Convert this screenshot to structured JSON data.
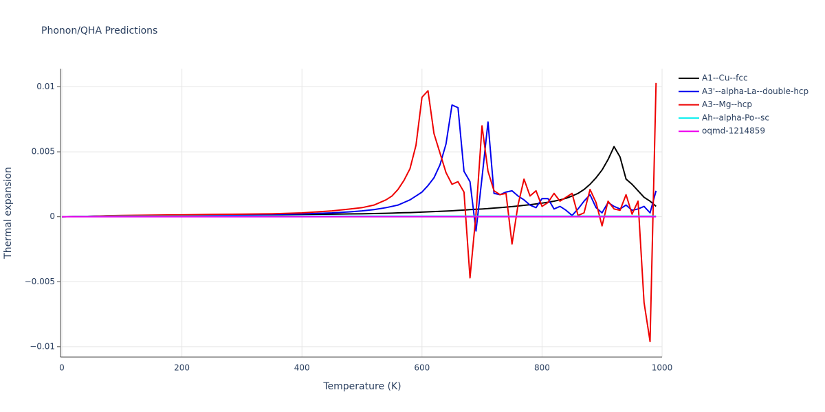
{
  "chart_data": {
    "type": "line",
    "title": "Phonon/QHA Predictions",
    "x_label": "Temperature (K)",
    "y_label": "Thermal expansion",
    "x": [
      0,
      25,
      50,
      75,
      100,
      150,
      200,
      250,
      300,
      350,
      400,
      450,
      480,
      500,
      520,
      540,
      550,
      560,
      570,
      580,
      590,
      600,
      610,
      620,
      630,
      640,
      650,
      660,
      670,
      680,
      690,
      700,
      710,
      720,
      730,
      740,
      750,
      760,
      770,
      780,
      790,
      800,
      810,
      820,
      830,
      840,
      850,
      860,
      870,
      880,
      890,
      900,
      910,
      920,
      930,
      940,
      950,
      960,
      970,
      980,
      990
    ],
    "xlim": [
      0,
      1000
    ],
    "xticks": [
      0,
      200,
      400,
      600,
      800,
      1000
    ],
    "ylim": [
      -0.0108,
      0.0114
    ],
    "yticks": [
      {
        "value": -0.01,
        "label": "−0.01"
      },
      {
        "value": -0.005,
        "label": "−0.005"
      },
      0,
      0.005,
      0.01
    ],
    "grid": true,
    "legend_position": "right",
    "series": [
      {
        "name": "A1--Cu--fcc",
        "color": "#000000",
        "values": [
          0,
          2e-05,
          4e-05,
          7e-05,
          8e-05,
          0.0001,
          0.00012,
          0.00013,
          0.00015,
          0.00016,
          0.00018,
          0.0002,
          0.00022,
          0.00023,
          0.00025,
          0.00027,
          0.00028,
          0.0003,
          0.00031,
          0.00032,
          0.00034,
          0.00036,
          0.00038,
          0.0004,
          0.00042,
          0.00044,
          0.00046,
          0.00049,
          0.00052,
          0.00055,
          0.00058,
          0.0006,
          0.00063,
          0.00067,
          0.0007,
          0.00074,
          0.00078,
          0.00083,
          0.00088,
          0.00093,
          0.00099,
          0.00105,
          0.00112,
          0.0012,
          0.0013,
          0.00142,
          0.0016,
          0.0018,
          0.0021,
          0.0025,
          0.003,
          0.0036,
          0.0044,
          0.0054,
          0.0046,
          0.0029,
          0.0025,
          0.002,
          0.0015,
          0.0012,
          0.0008
        ]
      },
      {
        "name": "A3'--alpha-La--double-hcp",
        "color": "#0000ee",
        "values": [
          0,
          2e-05,
          4e-05,
          6e-05,
          7e-05,
          9e-05,
          0.0001,
          0.00012,
          0.00015,
          0.00018,
          0.00022,
          0.0003,
          0.00038,
          0.00045,
          0.00055,
          0.0007,
          0.0008,
          0.0009,
          0.0011,
          0.0013,
          0.0016,
          0.0019,
          0.0024,
          0.003,
          0.004,
          0.0056,
          0.0086,
          0.0084,
          0.0035,
          0.0027,
          -0.0011,
          0.003,
          0.0073,
          0.0018,
          0.0017,
          0.0019,
          0.002,
          0.0016,
          0.0013,
          0.0009,
          0.0007,
          0.0014,
          0.0014,
          0.0006,
          0.0008,
          0.0005,
          0.0001,
          0.0006,
          0.0012,
          0.0017,
          0.0007,
          0.0003,
          0.0011,
          0.0008,
          0.0006,
          0.0009,
          0.0005,
          0.0006,
          0.0008,
          0.0003,
          0.002
        ]
      },
      {
        "name": "A3--Mg--hcp",
        "color": "#ee0000",
        "values": [
          0,
          2e-05,
          4e-05,
          8e-05,
          0.0001,
          0.00013,
          0.00015,
          0.00018,
          0.0002,
          0.00023,
          0.0003,
          0.00045,
          0.0006,
          0.0007,
          0.0009,
          0.0013,
          0.0016,
          0.0021,
          0.0028,
          0.0037,
          0.0055,
          0.0092,
          0.0097,
          0.0064,
          0.0049,
          0.0034,
          0.0025,
          0.0027,
          0.0019,
          -0.0047,
          0.0002,
          0.007,
          0.0035,
          0.002,
          0.0017,
          0.0018,
          -0.0021,
          0.0009,
          0.0029,
          0.0016,
          0.002,
          0.0008,
          0.0011,
          0.0018,
          0.0012,
          0.0015,
          0.0018,
          0.0001,
          0.0003,
          0.0021,
          0.0011,
          -0.0007,
          0.0012,
          0.0006,
          0.0005,
          0.0017,
          0.0002,
          0.0012,
          -0.0066,
          -0.0096,
          0.0103
        ]
      },
      {
        "name": "Ah--alpha-Po--sc",
        "color": "#00eeee",
        "values": [
          0,
          2e-05,
          3e-05,
          4e-05,
          5e-05,
          5e-05,
          5e-05,
          5e-05,
          5e-05,
          5e-05,
          5e-05,
          5e-05,
          5e-05,
          5e-05,
          5e-05,
          5e-05,
          5e-05,
          5e-05,
          5e-05,
          5e-05,
          5e-05,
          5e-05,
          5e-05,
          5e-05,
          5e-05,
          5e-05,
          5e-05,
          5e-05,
          5e-05,
          5e-05,
          5e-05,
          5e-05,
          5e-05,
          5e-05,
          5e-05,
          5e-05,
          5e-05,
          5e-05,
          5e-05,
          5e-05,
          5e-05,
          5e-05,
          5e-05,
          5e-05,
          5e-05,
          5e-05,
          5e-05,
          5e-05,
          5e-05,
          5e-05,
          5e-05,
          5e-05,
          5e-05,
          5e-05,
          5e-05,
          5e-05,
          5e-05,
          5e-05,
          5e-05,
          5e-05,
          5e-05
        ]
      },
      {
        "name": "oqmd-1214859",
        "color": "#ee00ee",
        "values": [
          0,
          0,
          0,
          0,
          0,
          0,
          0,
          0,
          0,
          0,
          0,
          0,
          0,
          0,
          0,
          0,
          0,
          0,
          0,
          0,
          0,
          0,
          0,
          0,
          0,
          0,
          0,
          0,
          0,
          0,
          0,
          0,
          0,
          0,
          0,
          0,
          0,
          0,
          0,
          0,
          0,
          0,
          0,
          0,
          0,
          0,
          0,
          0,
          0,
          0,
          0,
          0,
          0,
          0,
          0,
          0,
          0,
          0,
          0,
          0,
          0
        ]
      }
    ]
  }
}
